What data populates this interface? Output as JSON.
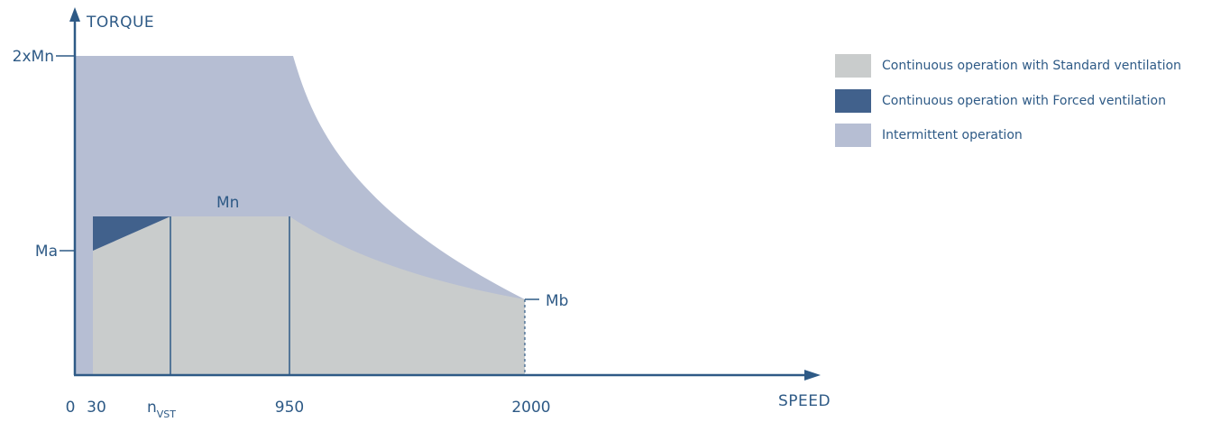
{
  "chart_data": {
    "type": "area",
    "xlabel": "SPEED",
    "ylabel": "TORQUE",
    "x_ticks": [
      "0",
      "30",
      "n_VST",
      "950",
      "2000"
    ],
    "y_ticks": [
      "2xMn",
      "Ma"
    ],
    "curve_labels": [
      "Mn",
      "Mb"
    ],
    "nvst_label": {
      "main": "n",
      "sub": "VST"
    },
    "series": [
      {
        "name": "Continuous operation with Standard ventilation",
        "color": "#c9cccc",
        "points": [
          [
            "30",
            "Ma"
          ],
          [
            "n_VST",
            "Mn"
          ],
          [
            "950",
            "Mn"
          ],
          [
            "2000",
            "Mb"
          ]
        ]
      },
      {
        "name": "Continuous operation with Forced ventilation",
        "color": "#41618c",
        "points": [
          [
            "30",
            "Ma"
          ],
          [
            "30",
            "Mn"
          ],
          [
            "n_VST",
            "Mn"
          ]
        ]
      },
      {
        "name": "Intermittent operation",
        "color": "#b6bed3",
        "points": [
          [
            "0",
            "2xMn"
          ],
          [
            "950",
            "2xMn"
          ],
          [
            "2000",
            "Mb"
          ]
        ]
      }
    ],
    "legend_position": "top-right",
    "grid": false
  },
  "colors": {
    "axis": "#2e5a86",
    "text": "#2e5a86"
  }
}
